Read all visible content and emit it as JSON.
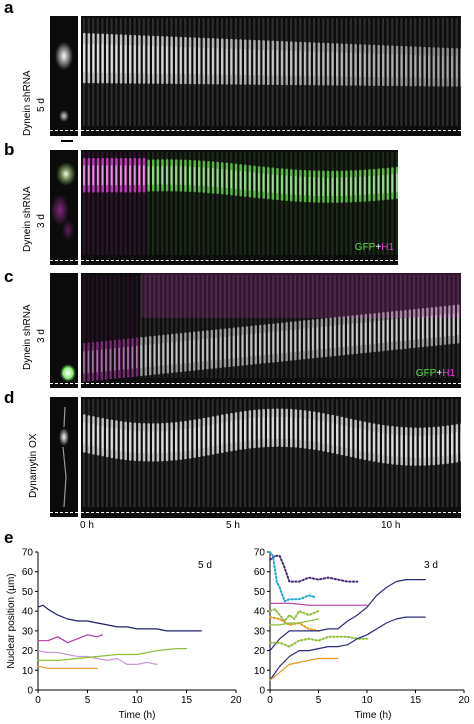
{
  "panels": {
    "a": {
      "letter": "a",
      "row_label": "Dynein shRNA",
      "row_sublabel": "5 d"
    },
    "b": {
      "letter": "b",
      "row_label": "Dynein shRNA",
      "row_sublabel": "3 d",
      "channel_a": "GFP",
      "plus": "+",
      "channel_b": "H1"
    },
    "c": {
      "letter": "c",
      "row_label": "Dynein shRNA",
      "row_sublabel": "3 d",
      "channel_a": "GFP",
      "plus": "+",
      "channel_b": "H1"
    },
    "d": {
      "letter": "d",
      "row_label": "Dynamytin OX"
    },
    "e": {
      "letter": "e"
    }
  },
  "time_axis": {
    "ticks": [
      "0 h",
      "5 h",
      "10 h"
    ]
  },
  "colors": {
    "gfp": "#5fdc4c",
    "h1": "#e23bd8"
  },
  "chart_data": [
    {
      "type": "line",
      "annotation": "5 d",
      "xlabel": "Time (h)",
      "ylabel": "Nuclear position (µm)",
      "xlim": [
        0,
        20
      ],
      "ylim": [
        0,
        70
      ],
      "xticks": [
        0,
        5,
        10,
        15,
        20
      ],
      "yticks": [
        0,
        10,
        20,
        30,
        40,
        50,
        60,
        70
      ],
      "series": [
        {
          "color": "#1c1f6b",
          "style": "solid",
          "x": [
            0,
            0.5,
            1,
            2,
            3,
            4,
            5,
            6,
            7,
            8,
            9,
            10,
            11,
            12,
            13,
            14,
            15,
            16,
            16.5
          ],
          "y": [
            42,
            43,
            41,
            38,
            36,
            35,
            35,
            34,
            33,
            32,
            32,
            31,
            31,
            31,
            30,
            30,
            30,
            30,
            30
          ]
        },
        {
          "color": "#b03aa6",
          "style": "solid",
          "x": [
            0,
            1,
            2,
            3,
            4,
            5,
            6,
            6.5
          ],
          "y": [
            25,
            25,
            27,
            24,
            26,
            28,
            27,
            28
          ]
        },
        {
          "color": "#c79ad1",
          "style": "solid",
          "x": [
            0,
            1,
            2,
            3,
            4,
            5,
            6,
            7,
            8,
            9,
            10,
            11,
            12
          ],
          "y": [
            20,
            19,
            19,
            18,
            17,
            17,
            16,
            15,
            16,
            13,
            13,
            14,
            13
          ]
        },
        {
          "color": "#8fbf3a",
          "style": "solid",
          "x": [
            0,
            2,
            4,
            6,
            8,
            10,
            12,
            14,
            15
          ],
          "y": [
            15,
            15,
            16,
            17,
            18,
            18,
            20,
            21,
            21
          ]
        },
        {
          "color": "#e29a22",
          "style": "solid",
          "x": [
            0,
            1,
            2,
            3,
            4,
            5,
            6
          ],
          "y": [
            12,
            11,
            11,
            11,
            11,
            11,
            11
          ]
        }
      ]
    },
    {
      "type": "line",
      "annotation": "3 d",
      "xlabel": "Time (h)",
      "ylabel": "",
      "xlim": [
        0,
        20
      ],
      "ylim": [
        0,
        70
      ],
      "xticks": [
        0,
        5,
        10,
        15,
        20
      ],
      "yticks": [
        0,
        10,
        20,
        30,
        40,
        50,
        60,
        70
      ],
      "series": [
        {
          "color": "#4b2a7a",
          "style": "dotted",
          "x": [
            0,
            0.5,
            1,
            1.5,
            2,
            3,
            4,
            5,
            6,
            7,
            8,
            9
          ],
          "y": [
            66,
            68,
            68,
            62,
            55,
            55,
            57,
            56,
            57,
            56,
            55,
            55
          ]
        },
        {
          "color": "#1aa7d6",
          "style": "dotted",
          "x": [
            0,
            0.3,
            0.7,
            1,
            1.5,
            2,
            3,
            4,
            4.7
          ],
          "y": [
            70,
            68,
            55,
            52,
            45,
            46,
            46,
            48,
            47
          ]
        },
        {
          "color": "#b03aa6",
          "style": "solid",
          "x": [
            0,
            2,
            4,
            6,
            8,
            10
          ],
          "y": [
            44,
            44,
            43,
            43,
            43,
            43
          ]
        },
        {
          "color": "#8fbf3a",
          "style": "dotted",
          "x": [
            0,
            0.5,
            1,
            1.5,
            2,
            2.5,
            3,
            4,
            5
          ],
          "y": [
            40,
            41,
            38,
            35,
            38,
            36,
            40,
            38,
            40
          ]
        },
        {
          "color": "#e29a22",
          "style": "dotted",
          "x": [
            0,
            1,
            2,
            3,
            4,
            5
          ],
          "y": [
            37,
            36,
            33,
            34,
            31,
            30
          ]
        },
        {
          "color": "#8fbf3a",
          "style": "solid",
          "x": [
            0,
            1,
            2,
            3,
            4,
            5
          ],
          "y": [
            33,
            33,
            34,
            34,
            35,
            36
          ]
        },
        {
          "color": "#2a2a7a",
          "style": "solid",
          "x": [
            0,
            1,
            2,
            3,
            4,
            5,
            6,
            7,
            8,
            9,
            10,
            11,
            12,
            13,
            14,
            15,
            16
          ],
          "y": [
            20,
            26,
            30,
            30,
            30,
            30,
            31,
            31,
            35,
            38,
            42,
            48,
            52,
            55,
            56,
            56,
            56
          ]
        },
        {
          "color": "#8fbf3a",
          "style": "dotted",
          "x": [
            0,
            1,
            2,
            3,
            4,
            5,
            6,
            7,
            8,
            9,
            10
          ],
          "y": [
            24,
            24,
            22,
            25,
            26,
            25,
            27,
            27,
            27,
            26,
            26
          ]
        },
        {
          "color": "#2a2a7a",
          "style": "solid",
          "x": [
            0,
            1,
            2,
            3,
            4,
            5,
            6,
            7,
            8,
            9,
            10,
            11,
            12,
            13,
            14,
            15,
            16
          ],
          "y": [
            5,
            12,
            17,
            20,
            20,
            21,
            22,
            22,
            23,
            26,
            28,
            31,
            34,
            36,
            37,
            37,
            37
          ]
        },
        {
          "color": "#e29a22",
          "style": "solid",
          "x": [
            0,
            1,
            2,
            3,
            4,
            5,
            6,
            7
          ],
          "y": [
            5,
            9,
            13,
            14,
            15,
            16,
            16,
            16
          ]
        }
      ]
    }
  ]
}
